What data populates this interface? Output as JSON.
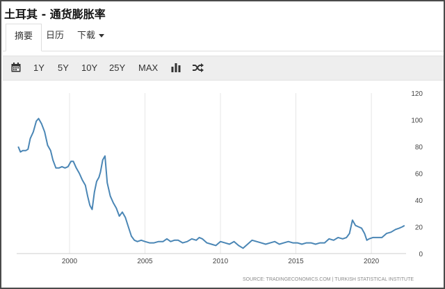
{
  "window": {
    "title": "土耳其 - 通货膨胀率"
  },
  "tabs": [
    {
      "label": "摘要",
      "active": true
    },
    {
      "label": "日历",
      "active": false
    },
    {
      "label": "下载",
      "active": false,
      "has_dropdown": true
    }
  ],
  "toolbar": {
    "calendar_icon": "calendar-icon",
    "ranges": [
      "1Y",
      "5Y",
      "10Y",
      "25Y",
      "MAX"
    ],
    "bar_icon": "bar-chart-icon",
    "shuffle_icon": "shuffle-icon"
  },
  "colors": {
    "line": "#4a86b5",
    "grid": "#e6e6e6",
    "toolbar_bg": "#eeeeee"
  },
  "chart_data": {
    "type": "line",
    "title": "",
    "xlabel": "",
    "ylabel": "",
    "xlim": [
      1996.5,
      2022.3
    ],
    "ylim": [
      0,
      120
    ],
    "yticks": [
      0,
      20,
      40,
      60,
      80,
      100,
      120
    ],
    "xticks": [
      2000,
      2005,
      2010,
      2015,
      2020
    ],
    "grid": "vertical",
    "source": "SOURCE: TRADINGECONOMICS.COM | TURKISH STATISTICAL INSTITUTE",
    "series": [
      {
        "x": [
          1996.6,
          1996.75,
          1996.9,
          1997.1,
          1997.25,
          1997.4,
          1997.6,
          1997.8,
          1997.95,
          1998.15,
          1998.35,
          1998.55,
          1998.75,
          1998.9,
          1999.1,
          1999.3,
          1999.5,
          1999.7,
          1999.9,
          2000.1,
          2000.25,
          2000.45,
          2000.65,
          2000.85,
          2001.05,
          2001.2,
          2001.35,
          2001.5,
          2001.65,
          2001.8,
          2001.95,
          2002.05,
          2002.2,
          2002.35,
          2002.5,
          2002.7,
          2002.9,
          2003.1,
          2003.3,
          2003.5,
          2003.7,
          2003.9,
          2004.1,
          2004.3,
          2004.5,
          2004.75,
          2005.0,
          2005.3,
          2005.6,
          2005.9,
          2006.2,
          2006.45,
          2006.7,
          2006.95,
          2007.2,
          2007.5,
          2007.8,
          2008.1,
          2008.4,
          2008.6,
          2008.8,
          2009.1,
          2009.4,
          2009.7,
          2010.0,
          2010.3,
          2010.6,
          2010.9,
          2011.2,
          2011.5,
          2011.8,
          2012.1,
          2012.4,
          2012.7,
          2013.0,
          2013.3,
          2013.6,
          2013.9,
          2014.2,
          2014.5,
          2014.8,
          2015.1,
          2015.4,
          2015.7,
          2016.0,
          2016.3,
          2016.6,
          2016.9,
          2017.2,
          2017.5,
          2017.8,
          2018.1,
          2018.35,
          2018.55,
          2018.75,
          2018.95,
          2019.15,
          2019.35,
          2019.55,
          2019.7,
          2019.85,
          2020.1,
          2020.4,
          2020.7,
          2021.0,
          2021.3,
          2021.6,
          2021.85,
          2022.05,
          2022.2
        ],
        "y": [
          80,
          76,
          77,
          77,
          78,
          86,
          91,
          99,
          101,
          97,
          91,
          81,
          77,
          70,
          64,
          64,
          65,
          64,
          65,
          69,
          69,
          64,
          60,
          55,
          51,
          43,
          36,
          33,
          46,
          54,
          57,
          61,
          70,
          73,
          53,
          43,
          38,
          34,
          28,
          31,
          27,
          20,
          13,
          10,
          9,
          10,
          9,
          8,
          8,
          9,
          9,
          11,
          9,
          10,
          10,
          8,
          9,
          11,
          10,
          12,
          11,
          8,
          7,
          6,
          9,
          8,
          7,
          9,
          6,
          4,
          7,
          10,
          9,
          8,
          7,
          8,
          9,
          7,
          8,
          9,
          8,
          8,
          7,
          8,
          8,
          7,
          8,
          8,
          11,
          10,
          12,
          11,
          12,
          15,
          25,
          21,
          20,
          19,
          15,
          10,
          11,
          12,
          12,
          12,
          15,
          16,
          18,
          19,
          20,
          21
        ]
      }
    ]
  }
}
